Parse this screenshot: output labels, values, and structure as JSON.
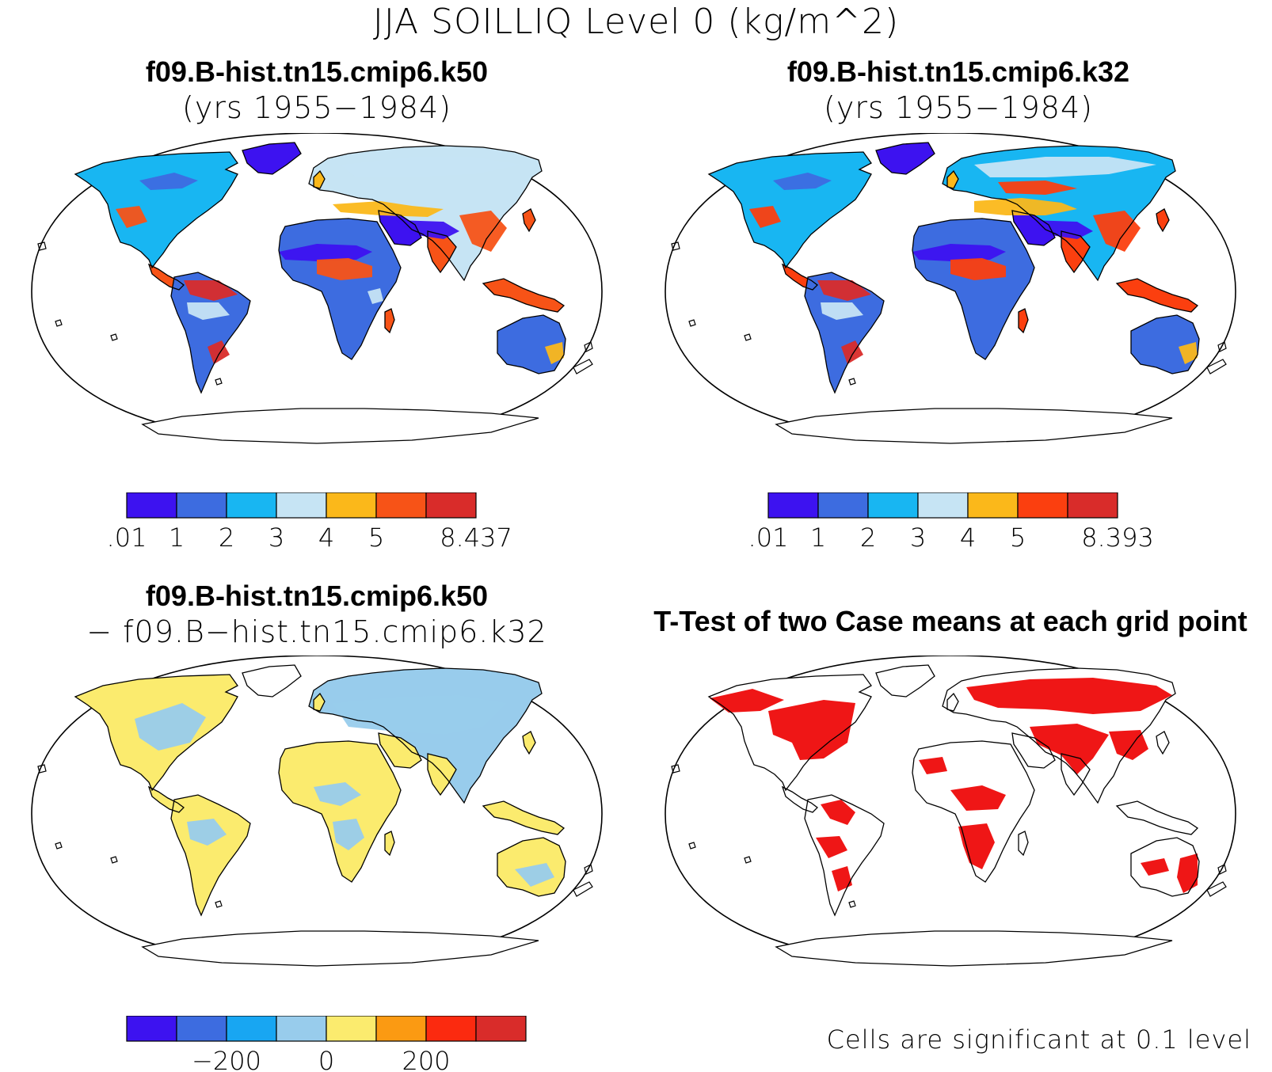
{
  "figure": {
    "title": "JJA SOILLIQ Level 0 (kg/m^2)"
  },
  "panels": {
    "top_left": {
      "title": "f09.B-hist.tn15.cmip6.k50",
      "subtitle": "(yrs 1955−1984)"
    },
    "top_right": {
      "title": "f09.B-hist.tn15.cmip6.k32",
      "subtitle": "(yrs 1955−1984)"
    },
    "bottom_left": {
      "title": "f09.B-hist.tn15.cmip6.k50",
      "subtitle": "− f09.B−hist.tn15.cmip6.k32"
    },
    "bottom_right": {
      "title": "T-Test of two Case means at each grid point",
      "note": "Cells are significant at 0.1 level"
    }
  },
  "colorbars": {
    "top_left": {
      "colors": [
        "#3d12f0",
        "#3d6ce0",
        "#18b6f2",
        "#c6e4f4",
        "#fbb81a",
        "#f75317",
        "#d92c2a"
      ],
      "labels": [
        ".01",
        "1",
        "2",
        "3",
        "4",
        "5",
        "8.437"
      ]
    },
    "top_right": {
      "colors": [
        "#3d12f0",
        "#3d6ce0",
        "#18b6f2",
        "#c6e4f4",
        "#fbb81a",
        "#fb3f0f",
        "#d92c2a"
      ],
      "labels": [
        ".01",
        "1",
        "2",
        "3",
        "4",
        "5",
        "8.393"
      ]
    },
    "bottom_left": {
      "colors": [
        "#3d12f0",
        "#3d6ce0",
        "#18a6f2",
        "#98ccec",
        "#fbeb6e",
        "#fb9a12",
        "#fb2a0f",
        "#d92c2a"
      ],
      "labels": [
        "−200",
        "0",
        "200"
      ]
    }
  },
  "map_colors": {
    "top_left": [
      "#3d12f0",
      "#3d6ce0",
      "#18b6f2",
      "#c6e4f4",
      "#fbb81a",
      "#f75317",
      "#d92c2a"
    ],
    "top_right": [
      "#3d12f0",
      "#3d6ce0",
      "#18b6f2",
      "#c6e4f4",
      "#fbb81a",
      "#fb3f0f",
      "#d92c2a"
    ],
    "bottom_left": [
      "#fbeb6e",
      "#98ccec"
    ],
    "bottom_right": [
      "#ee0a0a"
    ]
  }
}
